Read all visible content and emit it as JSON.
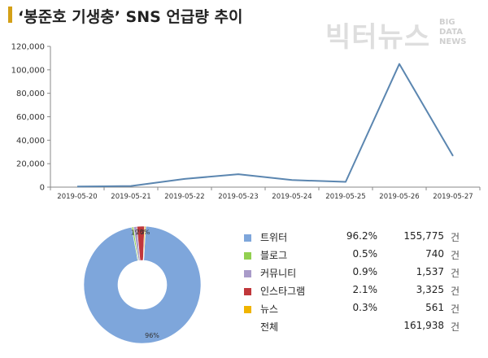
{
  "title": "‘봉준호 기생충’ SNS 언급량 추이",
  "logo": {
    "main": "빅터뉴스",
    "sub": [
      "BIG",
      "DATA",
      "NEWS"
    ]
  },
  "chart_data": [
    {
      "type": "line",
      "x": [
        "2019-05-20",
        "2019-05-21",
        "2019-05-22",
        "2019-05-23",
        "2019-05-24",
        "2019-05-25",
        "2019-05-26",
        "2019-05-27"
      ],
      "series": [
        {
          "values": [
            500,
            1000,
            7000,
            11000,
            6000,
            4500,
            105000,
            26500
          ],
          "color": "#5b86b0"
        }
      ],
      "ylim": [
        0,
        120000
      ],
      "yticks": [
        "0",
        "20,000",
        "40,000",
        "60,000",
        "80,000",
        "100,000",
        "120,000"
      ],
      "grid": false
    },
    {
      "type": "pie",
      "style": "donut",
      "slices": [
        {
          "label": "트위터",
          "percent": "96.2%",
          "value": "155,775",
          "share": 96.2,
          "color": "#7ea6db",
          "slice_label": "96%"
        },
        {
          "label": "블로그",
          "percent": "0.5%",
          "value": "740",
          "share": 0.5,
          "color": "#92d050",
          "slice_label": ""
        },
        {
          "label": "커뮤니티",
          "percent": "0.9%",
          "value": "1,537",
          "share": 0.9,
          "color": "#a99bc9",
          "slice_label": "1%"
        },
        {
          "label": "인스타그램",
          "percent": "2.1%",
          "value": "3,325",
          "share": 2.1,
          "color": "#c0373b",
          "slice_label": "2%"
        },
        {
          "label": "뉴스",
          "percent": "0.3%",
          "value": "561",
          "share": 0.3,
          "color": "#f0b400",
          "slice_label": "0%"
        }
      ],
      "total": {
        "label": "전체",
        "value": "161,938"
      },
      "unit": "건",
      "legend_position": "right"
    }
  ]
}
